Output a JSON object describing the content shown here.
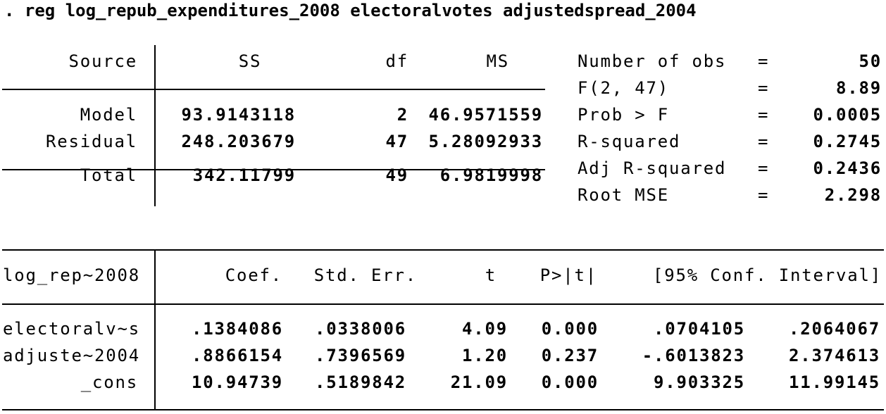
{
  "command": ". reg log_repub_expenditures_2008 electoralvotes adjustedspread_2004",
  "anova": {
    "headers": {
      "source": "Source",
      "ss": "SS",
      "df": "df",
      "ms": "MS"
    },
    "rows": [
      {
        "source": "Model",
        "ss": "93.9143118",
        "df": "2",
        "ms": "46.9571559"
      },
      {
        "source": "Residual",
        "ss": "248.203679",
        "df": "47",
        "ms": "5.28092933"
      },
      {
        "source": "Total",
        "ss": "342.11799",
        "df": "49",
        "ms": "6.9819998"
      }
    ]
  },
  "stats": [
    {
      "label": "Number of obs",
      "eq": "=",
      "value": "50"
    },
    {
      "label": "F(2, 47)",
      "eq": "=",
      "value": "8.89"
    },
    {
      "label": "Prob > F",
      "eq": "=",
      "value": "0.0005"
    },
    {
      "label": "R-squared",
      "eq": "=",
      "value": "0.2745"
    },
    {
      "label": "Adj R-squared",
      "eq": "=",
      "value": "0.2436"
    },
    {
      "label": "Root MSE",
      "eq": "=",
      "value": "2.298"
    }
  ],
  "coef": {
    "headers": {
      "var": "log_rep~2008",
      "coef": "Coef.",
      "se": "Std. Err.",
      "t": "t",
      "p": "P>|t|",
      "ci": "[95% Conf. Interval]"
    },
    "rows": [
      {
        "var": "electoralv~s",
        "coef": ".1384086",
        "se": ".0338006",
        "t": "4.09",
        "p": "0.000",
        "lo": ".0704105",
        "hi": ".2064067"
      },
      {
        "var": "adjuste~2004",
        "coef": ".8866154",
        "se": ".7396569",
        "t": "1.20",
        "p": "0.237",
        "lo": "-.6013823",
        "hi": "2.374613"
      },
      {
        "var": "_cons",
        "coef": "10.94739",
        "se": ".5189842",
        "t": "21.09",
        "p": "0.000",
        "lo": "9.903325",
        "hi": "11.99145"
      }
    ]
  }
}
